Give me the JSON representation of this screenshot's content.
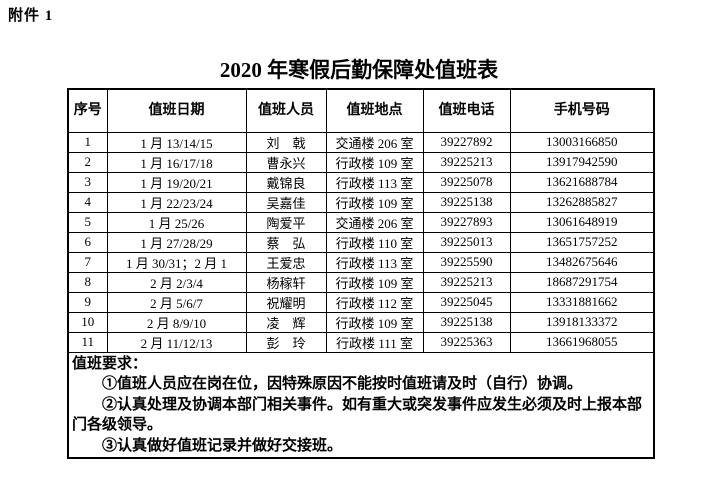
{
  "attachment_label": "附件 1",
  "title": "2020 年寒假后勤保障处值班表",
  "table": {
    "headers": [
      "序号",
      "值班日期",
      "值班人员",
      "值班地点",
      "值班电话",
      "手机号码"
    ],
    "rows": [
      [
        "1",
        "1 月 13/14/15",
        "刘　戟",
        "交通楼 206 室",
        "39227892",
        "13003166850"
      ],
      [
        "2",
        "1 月 16/17/18",
        "曹永兴",
        "行政楼 109 室",
        "39225213",
        "13917942590"
      ],
      [
        "3",
        "1 月 19/20/21",
        "戴锦良",
        "行政楼 113 室",
        "39225078",
        "13621688784"
      ],
      [
        "4",
        "1 月 22/23/24",
        "吴嘉佳",
        "行政楼 109 室",
        "39225138",
        "13262885827"
      ],
      [
        "5",
        "1 月 25/26",
        "陶爱平",
        "交通楼 206 室",
        "39227893",
        "13061648919"
      ],
      [
        "6",
        "1 月 27/28/29",
        "蔡　弘",
        "行政楼 110 室",
        "39225013",
        "13651757252"
      ],
      [
        "7",
        "1 月 30/31；2 月 1",
        "王爱忠",
        "行政楼 113 室",
        "39225590",
        "13482675646"
      ],
      [
        "8",
        "2 月 2/3/4",
        "杨稼轩",
        "行政楼 109 室",
        "39225213",
        "18687291754"
      ],
      [
        "9",
        "2 月 5/6/7",
        "祝耀明",
        "行政楼 112 室",
        "39225045",
        "13331881662"
      ],
      [
        "10",
        "2 月 8/9/10",
        "凌　辉",
        "行政楼 109 室",
        "39225138",
        "13918133372"
      ],
      [
        "11",
        "2 月 11/12/13",
        "彭　玲",
        "行政楼 111 室",
        "39225363",
        "13661968055"
      ]
    ]
  },
  "notes": {
    "heading": "值班要求：",
    "items": [
      "①值班人员应在岗在位，因特殊原因不能按时值班请及时（自行）协调。",
      "②认真处理及协调本部门相关事件。如有重大或突发事件应发生必须及时上报本部门各级领导。",
      "③认真做好值班记录并做好交接班。"
    ]
  },
  "colors": {
    "text": "#000000",
    "background": "#ffffff",
    "border": "#000000"
  }
}
